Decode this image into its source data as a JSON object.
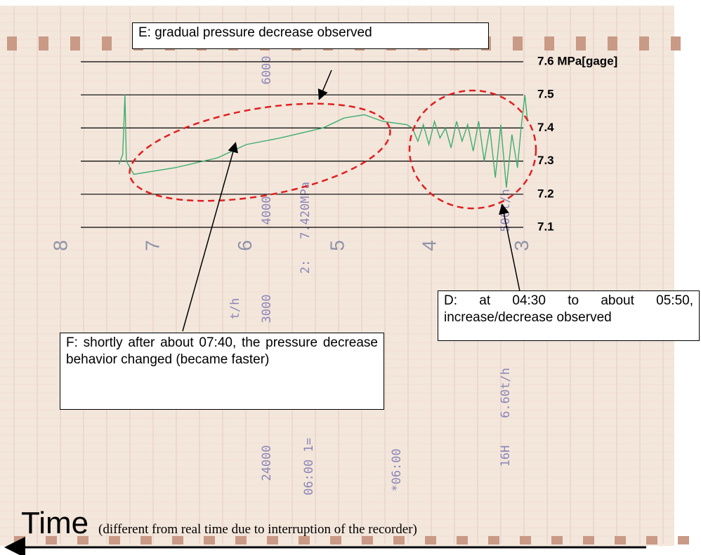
{
  "chart_data": {
    "type": "line",
    "x": [
      7.38,
      7.34,
      7.315,
      7.3,
      7.22,
      6.77,
      6.31,
      6.0,
      5.63,
      5.17,
      4.94,
      4.72,
      4.52,
      4.26,
      4.2,
      4.14,
      4.08,
      4.02,
      3.96,
      3.9,
      3.84,
      3.78,
      3.72,
      3.66,
      3.6,
      3.54,
      3.48,
      3.42,
      3.36,
      3.3,
      3.24,
      3.18,
      3.12,
      3.06,
      3.02,
      2.98,
      2.95
    ],
    "values": [
      7.29,
      7.32,
      7.5,
      7.3,
      7.26,
      7.28,
      7.31,
      7.35,
      7.37,
      7.4,
      7.43,
      7.44,
      7.42,
      7.41,
      7.4,
      7.36,
      7.41,
      7.35,
      7.42,
      7.37,
      7.4,
      7.34,
      7.42,
      7.36,
      7.41,
      7.33,
      7.42,
      7.3,
      7.4,
      7.25,
      7.41,
      7.22,
      7.38,
      7.28,
      7.4,
      7.5,
      7.42
    ],
    "color": "#3fae6f",
    "xlim": [
      8.67,
      1.07
    ],
    "xticks": [
      8,
      7,
      6,
      5,
      4,
      3
    ],
    "ylim": [
      7.1,
      7.6
    ],
    "yticks": [
      7.1,
      7.2,
      7.3,
      7.4,
      7.5,
      {
        "value": 7.6,
        "label": "7.6 MPa[gage]"
      }
    ],
    "grid": true,
    "paper_texts": [
      "6000",
      "4000",
      "7.420MPa",
      "2:",
      "t/h",
      "3000",
      "24000",
      "06:00 1=",
      "*06:00",
      "16H",
      "6.60t/h",
      "500t/h"
    ],
    "annotations": {
      "E": "E: gradual pressure decrease observed",
      "F": "F: shortly after about 07:40, the pressure decrease behavior changed (became faster)",
      "D": "D: at 04:30 to about 05:50, increase/decrease observed"
    },
    "time_label": "Time",
    "time_note": "(different from real time due to interruption of the recorder)"
  }
}
